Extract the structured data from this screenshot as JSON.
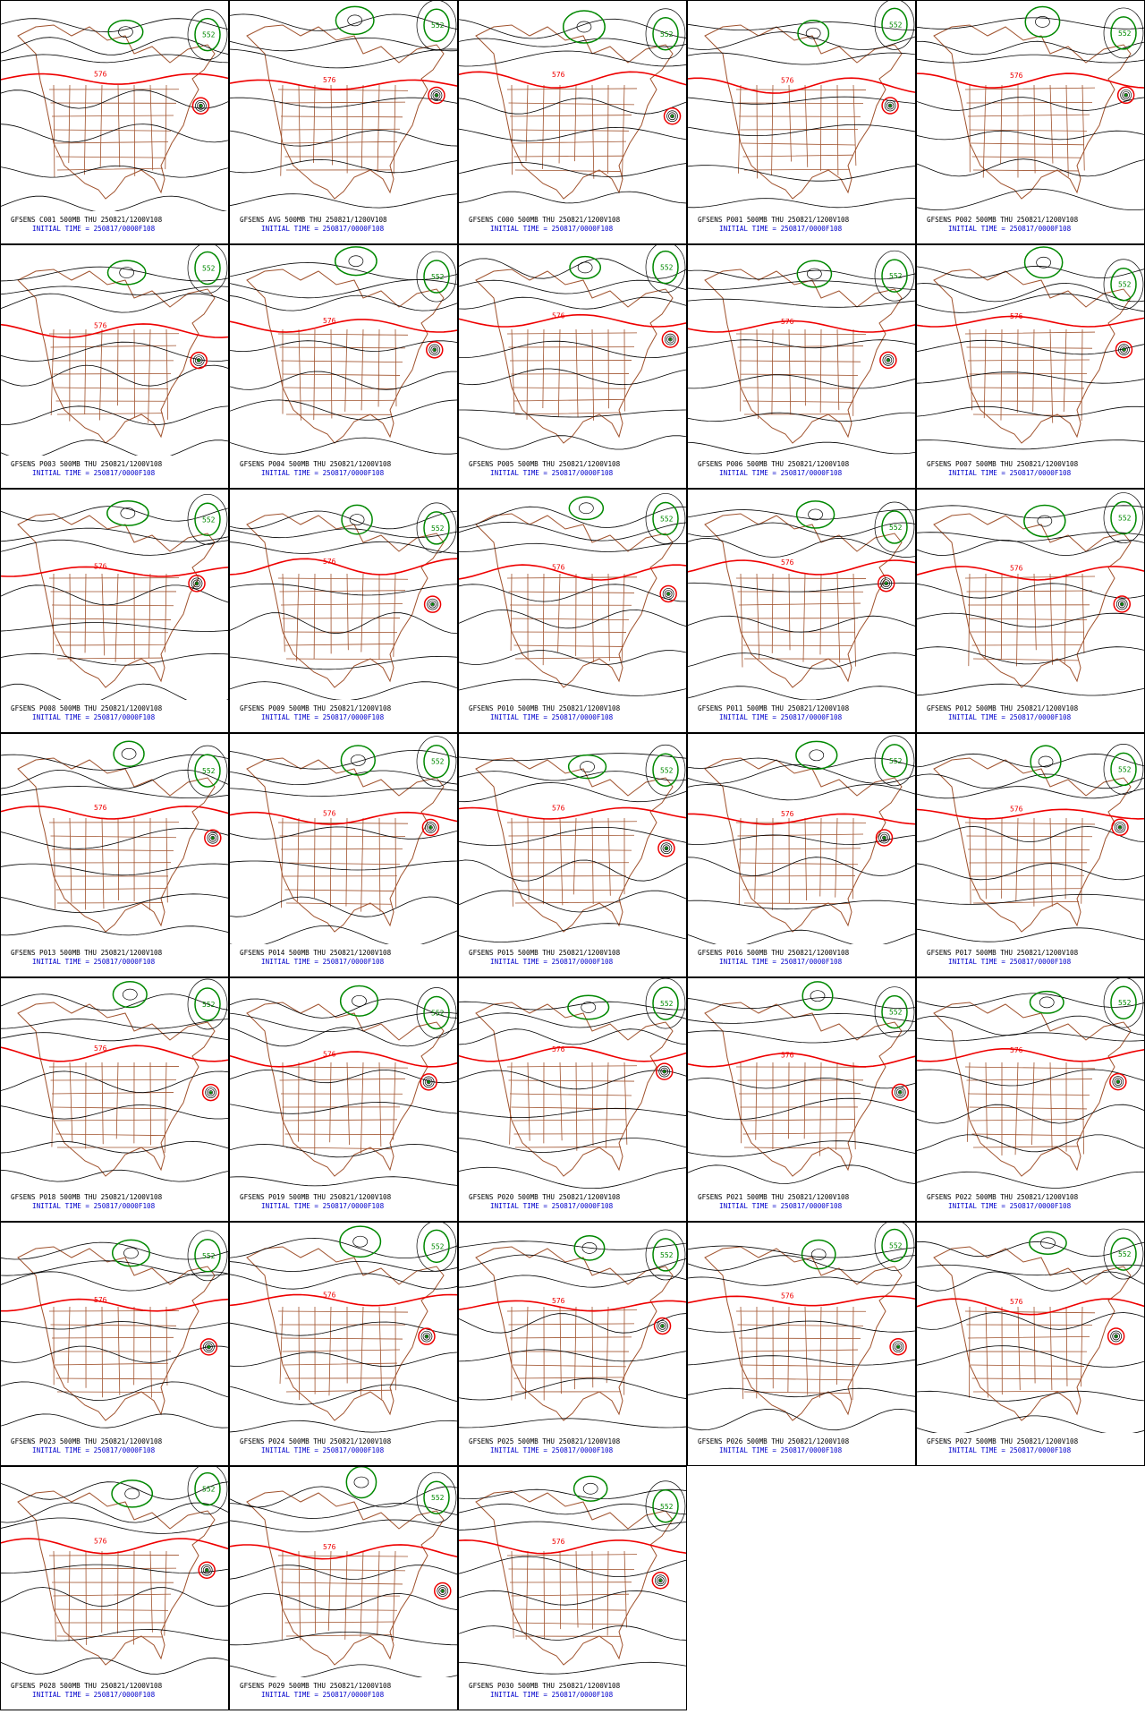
{
  "panels": [
    {
      "title": "GFSENS C001 500MB THU 250821/1200V108",
      "init_time": "INITIAL TIME = 250817/0000F108",
      "labels": [
        "576",
        "552"
      ]
    },
    {
      "title": "GFSENS AVG 500MB THU 250821/1200V108",
      "init_time": "INITIAL TIME = 250817/0000F108",
      "labels": [
        "576",
        "552"
      ]
    },
    {
      "title": "GFSENS C000 500MB THU 250821/1200V108",
      "init_time": "INITIAL TIME = 250817/0000F108",
      "labels": [
        "576",
        "552"
      ]
    },
    {
      "title": "GFSENS P001 500MB THU 250821/1200V108",
      "init_time": "INITIAL TIME = 250817/0000F108",
      "labels": [
        "576",
        "552"
      ]
    },
    {
      "title": "GFSENS P002 500MB THU 250821/1200V108",
      "init_time": "INITIAL TIME = 250817/0000F108",
      "labels": [
        "576",
        "552"
      ]
    },
    {
      "title": "GFSENS P003 500MB THU 250821/1200V108",
      "init_time": "INITIAL TIME = 250817/0000F108",
      "labels": [
        "576",
        "552"
      ]
    },
    {
      "title": "GFSENS P004 500MB THU 250821/1200V108",
      "init_time": "INITIAL TIME = 250817/0000F108",
      "labels": [
        "576",
        "552"
      ]
    },
    {
      "title": "GFSENS P005 500MB THU 250821/1200V108",
      "init_time": "INITIAL TIME = 250817/0000F108",
      "labels": [
        "576",
        "552"
      ]
    },
    {
      "title": "GFSENS P006 500MB THU 250821/1200V108",
      "init_time": "INITIAL TIME = 250817/0000F108",
      "labels": [
        "576",
        "552"
      ]
    },
    {
      "title": "GFSENS P007 500MB THU 250821/1200V108",
      "init_time": "INITIAL TIME = 250817/0000F108",
      "labels": [
        "576",
        "552"
      ]
    },
    {
      "title": "GFSENS P008 500MB THU 250821/1200V108",
      "init_time": "INITIAL TIME = 250817/0000F108",
      "labels": [
        "576",
        "552"
      ]
    },
    {
      "title": "GFSENS P009 500MB THU 250821/1200V108",
      "init_time": "INITIAL TIME = 250817/0000F108",
      "labels": [
        "576",
        "552"
      ]
    },
    {
      "title": "GFSENS P010 500MB THU 250821/1200V108",
      "init_time": "INITIAL TIME = 250817/0000F108",
      "labels": [
        "576",
        "552"
      ]
    },
    {
      "title": "GFSENS P011 500MB THU 250821/1200V108",
      "init_time": "INITIAL TIME = 250817/0000F108",
      "labels": [
        "576",
        "552"
      ]
    },
    {
      "title": "GFSENS P012 500MB THU 250821/1200V108",
      "init_time": "INITIAL TIME = 250817/0000F108",
      "labels": [
        "576",
        "552"
      ]
    },
    {
      "title": "GFSENS P013 500MB THU 250821/1200V108",
      "init_time": "INITIAL TIME = 250817/0000F108",
      "labels": [
        "576",
        "552"
      ]
    },
    {
      "title": "GFSENS P014 500MB THU 250821/1200V108",
      "init_time": "INITIAL TIME = 250817/0000F108",
      "labels": [
        "576",
        "552"
      ]
    },
    {
      "title": "GFSENS P015 500MB THU 250821/1200V108",
      "init_time": "INITIAL TIME = 250817/0000F108",
      "labels": [
        "576",
        "552"
      ]
    },
    {
      "title": "GFSENS P016 500MB THU 250821/1200V108",
      "init_time": "INITIAL TIME = 250817/0000F108",
      "labels": [
        "576",
        "552"
      ]
    },
    {
      "title": "GFSENS P017 500MB THU 250821/1200V108",
      "init_time": "INITIAL TIME = 250817/0000F108",
      "labels": [
        "576",
        "552"
      ]
    },
    {
      "title": "GFSENS P018 500MB THU 250821/1200V108",
      "init_time": "INITIAL TIME = 250817/0000F108",
      "labels": [
        "576",
        "552"
      ]
    },
    {
      "title": "GFSENS P019 500MB THU 250821/1200V108",
      "init_time": "INITIAL TIME = 250817/0000F108",
      "labels": [
        "576",
        "552"
      ]
    },
    {
      "title": "GFSENS P020 500MB THU 250821/1200V108",
      "init_time": "INITIAL TIME = 250817/0000F108",
      "labels": [
        "576",
        "552"
      ]
    },
    {
      "title": "GFSENS P021 500MB THU 250821/1200V108",
      "init_time": "INITIAL TIME = 250817/0000F108",
      "labels": [
        "576",
        "552"
      ]
    },
    {
      "title": "GFSENS P022 500MB THU 250821/1200V108",
      "init_time": "INITIAL TIME = 250817/0000F108",
      "labels": [
        "576",
        "552"
      ]
    },
    {
      "title": "GFSENS P023 500MB THU 250821/1200V108",
      "init_time": "INITIAL TIME = 250817/0000F108",
      "labels": [
        "576",
        "552"
      ]
    },
    {
      "title": "GFSENS P024 500MB THU 250821/1200V108",
      "init_time": "INITIAL TIME = 250817/0000F108",
      "labels": [
        "576",
        "552"
      ]
    },
    {
      "title": "GFSENS P025 500MB THU 250821/1200V108",
      "init_time": "INITIAL TIME = 250817/0000F108",
      "labels": [
        "576",
        "552"
      ]
    },
    {
      "title": "GFSENS P026 500MB THU 250821/1200V108",
      "init_time": "INITIAL TIME = 250817/0000F108",
      "labels": [
        "576",
        "552"
      ]
    },
    {
      "title": "GFSENS P027 500MB THU 250821/1200V108",
      "init_time": "INITIAL TIME = 250817/0000F108",
      "labels": [
        "576",
        "552"
      ]
    },
    {
      "title": "GFSENS P028 500MB THU 250821/1200V108",
      "init_time": "INITIAL TIME = 250817/0000F108",
      "labels": [
        "576",
        "552"
      ]
    },
    {
      "title": "GFSENS P029 500MB THU 250821/1200V108",
      "init_time": "INITIAL TIME = 250817/0000F108",
      "labels": [
        "576",
        "552"
      ]
    },
    {
      "title": "GFSENS P030 500MB THU 250821/1200V108",
      "init_time": "INITIAL TIME = 250817/0000F108",
      "labels": [
        "576",
        "552"
      ]
    }
  ]
}
